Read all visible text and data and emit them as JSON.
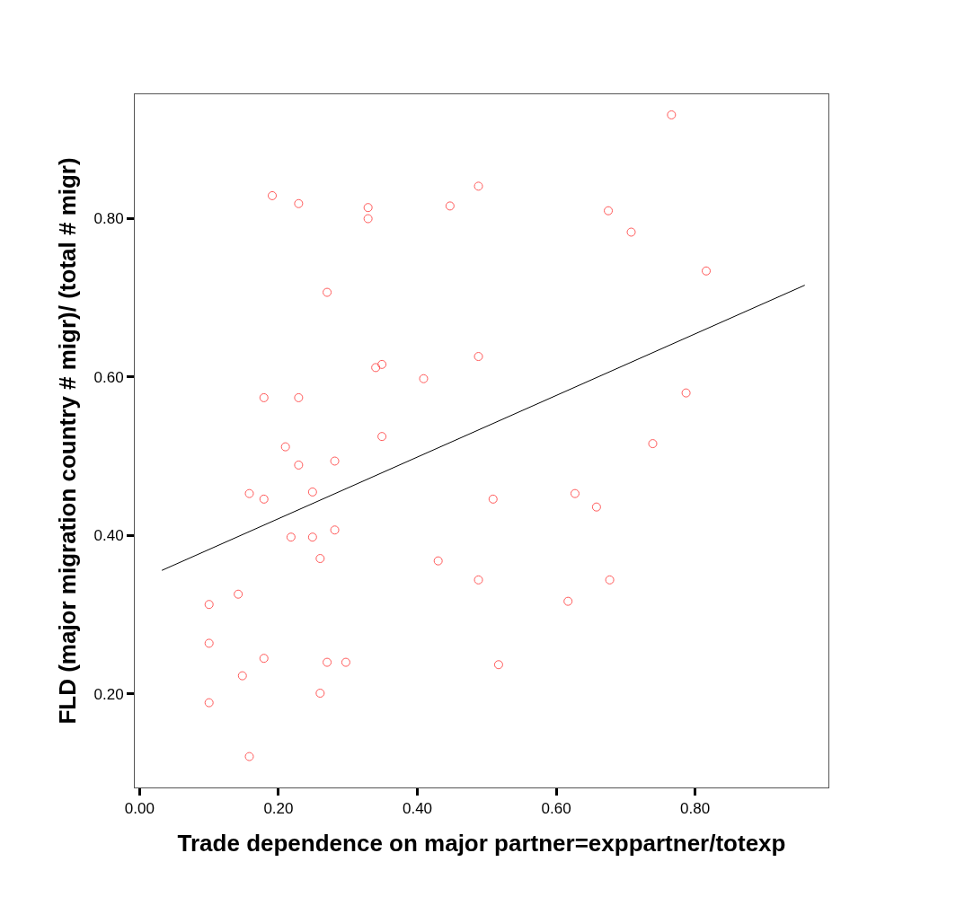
{
  "chart_data": {
    "type": "scatter",
    "xlabel": "Trade dependence on major partner=exppartner/totexp",
    "ylabel": "FLD (major migration country # migr)/ (total # migr)",
    "xlim": [
      -0.007,
      0.992
    ],
    "ylim": [
      0.082,
      0.957
    ],
    "xticks": [
      {
        "value": 0,
        "label": "0.00"
      },
      {
        "value": 0.2,
        "label": "0.20"
      },
      {
        "value": 0.4,
        "label": "0.40"
      },
      {
        "value": 0.6,
        "label": "0.60"
      },
      {
        "value": 0.8,
        "label": "0.80"
      }
    ],
    "yticks": [
      {
        "value": 0.2,
        "label": "0.20"
      },
      {
        "value": 0.4,
        "label": "0.40"
      },
      {
        "value": 0.6,
        "label": "0.60"
      },
      {
        "value": 0.8,
        "label": "0.80"
      }
    ],
    "marker": "circle",
    "series": [
      {
        "color": "#ff5a5a",
        "x": [
          0.766,
          0.191,
          0.229,
          0.329,
          0.329,
          0.447,
          0.488,
          0.675,
          0.708,
          0.816,
          0.27,
          0.179,
          0.229,
          0.34,
          0.349,
          0.409,
          0.488,
          0.787,
          0.349,
          0.21,
          0.229,
          0.281,
          0.739,
          0.158,
          0.179,
          0.249,
          0.509,
          0.627,
          0.658,
          0.218,
          0.249,
          0.281,
          0.26,
          0.43,
          0.488,
          0.677,
          0.1,
          0.142,
          0.617,
          0.1,
          0.179,
          0.27,
          0.297,
          0.517,
          0.148,
          0.26,
          0.1,
          0.158
        ],
        "values": [
          0.931,
          0.829,
          0.819,
          0.814,
          0.8,
          0.816,
          0.841,
          0.81,
          0.783,
          0.734,
          0.707,
          0.574,
          0.574,
          0.612,
          0.616,
          0.598,
          0.626,
          0.58,
          0.525,
          0.512,
          0.489,
          0.494,
          0.516,
          0.453,
          0.446,
          0.455,
          0.446,
          0.453,
          0.436,
          0.398,
          0.398,
          0.407,
          0.371,
          0.368,
          0.344,
          0.344,
          0.313,
          0.326,
          0.317,
          0.264,
          0.245,
          0.24,
          0.24,
          0.237,
          0.223,
          0.201,
          0.189,
          0.121
        ]
      },
      {
        "type": "line",
        "marker": "none",
        "color": "#000000",
        "x": [
          0.032,
          0.958
        ],
        "values": [
          0.356,
          0.716
        ]
      }
    ]
  }
}
